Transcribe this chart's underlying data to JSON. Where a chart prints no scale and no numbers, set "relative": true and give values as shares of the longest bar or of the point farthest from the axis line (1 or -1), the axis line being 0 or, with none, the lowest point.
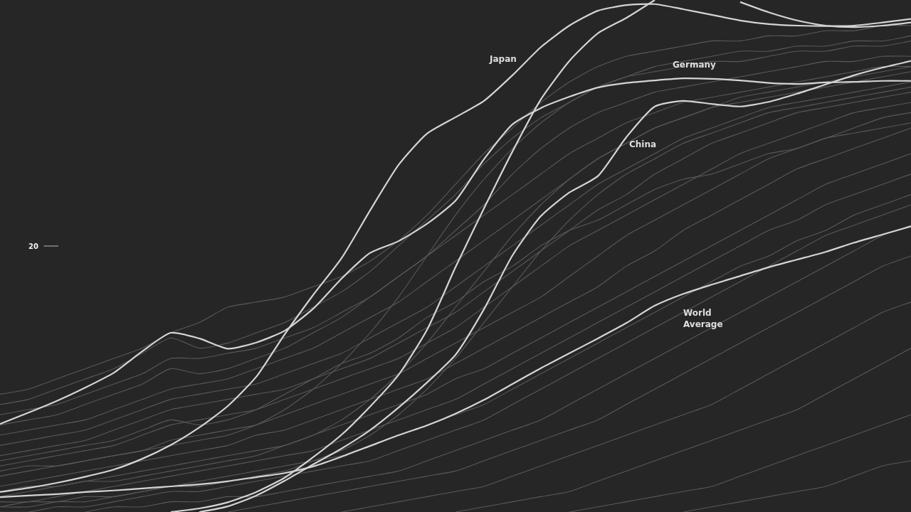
{
  "chart_data": {
    "type": "line",
    "relative": true,
    "categories": [
      null,
      null,
      null,
      null,
      null,
      null,
      null,
      null,
      null,
      null,
      null,
      null,
      null,
      null,
      null,
      null,
      null,
      null,
      null,
      null,
      null,
      null,
      null,
      null,
      null,
      null,
      null,
      null,
      null,
      null,
      null,
      null,
      null
    ],
    "annotations": [
      "20"
    ],
    "series": [
      {
        "color": "#595959",
        "values": [
          0.23,
          0.24,
          0.26,
          0.28,
          0.3,
          0.32,
          0.35,
          0.37,
          0.4,
          0.41,
          0.42,
          0.44,
          0.46,
          0.49,
          0.53,
          0.58,
          0.64,
          0.7,
          0.75,
          0.8,
          0.84,
          0.87,
          0.89,
          0.9,
          0.91,
          0.92,
          0.92,
          0.93,
          0.93,
          0.94,
          0.94,
          0.95,
          0.95
        ]
      },
      {
        "color": "#595959",
        "values": [
          0.21,
          0.22,
          0.24,
          0.26,
          0.28,
          0.31,
          0.34,
          0.32,
          0.33,
          0.35,
          0.37,
          0.4,
          0.43,
          0.47,
          0.52,
          0.57,
          0.62,
          0.68,
          0.73,
          0.77,
          0.8,
          0.83,
          0.85,
          0.86,
          0.87,
          0.88,
          0.88,
          0.89,
          0.9,
          0.9,
          0.91,
          0.91,
          0.92
        ]
      },
      {
        "color": "#595959",
        "values": [
          0.19,
          0.2,
          0.21,
          0.23,
          0.25,
          0.27,
          0.3,
          0.3,
          0.31,
          0.32,
          0.34,
          0.36,
          0.39,
          0.42,
          0.46,
          0.5,
          0.55,
          0.6,
          0.66,
          0.71,
          0.75,
          0.78,
          0.8,
          0.82,
          0.83,
          0.84,
          0.85,
          0.86,
          0.87,
          0.88,
          0.88,
          0.89,
          0.89
        ]
      },
      {
        "color": "#595959",
        "values": [
          0.17,
          0.18,
          0.19,
          0.21,
          0.23,
          0.25,
          0.28,
          0.27,
          0.28,
          0.3,
          0.32,
          0.35,
          0.38,
          0.42,
          0.46,
          0.5,
          0.54,
          0.58,
          0.62,
          0.66,
          0.7,
          0.73,
          0.76,
          0.78,
          0.8,
          0.81,
          0.82,
          0.83,
          0.84,
          0.85,
          0.86,
          0.87,
          0.87
        ]
      },
      {
        "color": "#595959",
        "values": [
          0.15,
          0.16,
          0.17,
          0.18,
          0.2,
          0.22,
          0.24,
          0.25,
          0.26,
          0.28,
          0.3,
          0.32,
          0.35,
          0.38,
          0.41,
          0.45,
          0.49,
          0.53,
          0.57,
          0.61,
          0.65,
          0.69,
          0.72,
          0.75,
          0.77,
          0.79,
          0.8,
          0.81,
          0.82,
          0.83,
          0.84,
          0.85,
          0.86
        ]
      },
      {
        "color": "#595959",
        "values": [
          0.13,
          0.14,
          0.15,
          0.16,
          0.18,
          0.2,
          0.22,
          0.23,
          0.24,
          0.25,
          0.27,
          0.29,
          0.31,
          0.34,
          0.37,
          0.4,
          0.44,
          0.48,
          0.52,
          0.56,
          0.6,
          0.64,
          0.67,
          0.7,
          0.73,
          0.75,
          0.77,
          0.79,
          0.8,
          0.81,
          0.82,
          0.83,
          0.84
        ]
      },
      {
        "color": "#595959",
        "values": [
          0.11,
          0.12,
          0.13,
          0.14,
          0.16,
          0.18,
          0.2,
          0.21,
          0.22,
          0.23,
          0.24,
          0.26,
          0.28,
          0.3,
          0.33,
          0.36,
          0.39,
          0.43,
          0.47,
          0.51,
          0.55,
          0.59,
          0.62,
          0.66,
          0.69,
          0.72,
          0.74,
          0.76,
          0.78,
          0.79,
          0.8,
          0.81,
          0.82
        ]
      },
      {
        "color": "#595959",
        "values": [
          0.09,
          0.1,
          0.11,
          0.12,
          0.13,
          0.15,
          0.17,
          0.18,
          0.19,
          0.2,
          0.22,
          0.24,
          0.26,
          0.28,
          0.3,
          0.33,
          0.36,
          0.4,
          0.44,
          0.48,
          0.52,
          0.55,
          0.58,
          0.61,
          0.64,
          0.67,
          0.7,
          0.72,
          0.74,
          0.76,
          0.78,
          0.79,
          0.8
        ]
      },
      {
        "color": "#595959",
        "values": [
          0.07,
          0.08,
          0.09,
          0.1,
          0.11,
          0.12,
          0.14,
          0.15,
          0.16,
          0.17,
          0.19,
          0.21,
          0.23,
          0.25,
          0.27,
          0.3,
          0.33,
          0.36,
          0.39,
          0.42,
          0.46,
          0.5,
          0.54,
          0.57,
          0.6,
          0.63,
          0.66,
          0.69,
          0.71,
          0.73,
          0.75,
          0.77,
          0.78
        ]
      },
      {
        "color": "#595959",
        "values": [
          0.05,
          0.06,
          0.07,
          0.08,
          0.09,
          0.1,
          0.11,
          0.12,
          0.13,
          0.15,
          0.16,
          0.18,
          0.2,
          0.22,
          0.24,
          0.26,
          0.29,
          0.32,
          0.35,
          0.38,
          0.41,
          0.44,
          0.48,
          0.51,
          0.55,
          0.58,
          0.61,
          0.64,
          0.67,
          0.69,
          0.71,
          0.73,
          0.75
        ]
      },
      {
        "color": "#595959",
        "values": [
          0.03,
          0.04,
          0.05,
          0.06,
          0.07,
          0.08,
          0.09,
          0.1,
          0.11,
          0.12,
          0.13,
          0.15,
          0.17,
          0.19,
          0.21,
          0.23,
          0.26,
          0.28,
          0.31,
          0.34,
          0.37,
          0.4,
          0.43,
          0.46,
          0.49,
          0.52,
          0.55,
          0.58,
          0.61,
          0.64,
          0.66,
          0.68,
          0.7
        ]
      },
      {
        "color": "#595959",
        "values": [
          0.02,
          0.02,
          0.03,
          0.04,
          0.05,
          0.06,
          0.07,
          0.08,
          0.09,
          0.1,
          0.11,
          0.12,
          0.14,
          0.16,
          0.18,
          0.2,
          0.22,
          0.25,
          0.28,
          0.31,
          0.34,
          0.37,
          0.4,
          0.43,
          0.46,
          0.49,
          0.52,
          0.55,
          0.57,
          0.6,
          0.62,
          0.64,
          0.66
        ]
      },
      {
        "color": "#595959",
        "values": [
          0.01,
          0.01,
          0.02,
          0.02,
          0.03,
          0.04,
          0.05,
          0.06,
          0.07,
          0.08,
          0.09,
          0.1,
          0.11,
          0.13,
          0.15,
          0.17,
          0.19,
          0.21,
          0.24,
          0.27,
          0.3,
          0.33,
          0.36,
          0.39,
          0.42,
          0.45,
          0.48,
          0.5,
          0.53,
          0.55,
          0.58,
          0.6,
          0.62
        ]
      },
      {
        "color": "#595959",
        "values": [
          0,
          0,
          0.01,
          0.01,
          0.02,
          0.03,
          0.04,
          0.04,
          0.05,
          0.06,
          0.07,
          0.08,
          0.09,
          0.1,
          0.12,
          0.14,
          0.16,
          0.18,
          0.21,
          0.24,
          0.27,
          0.3,
          0.33,
          0.36,
          0.39,
          0.42,
          0.45,
          0.48,
          0.51,
          0.54,
          0.56,
          0.58,
          0.6
        ]
      },
      {
        "color": "#595959",
        "values": [
          null,
          null,
          null,
          0,
          0.01,
          0.01,
          0.02,
          0.02,
          0.03,
          0.03,
          0.04,
          0.05,
          0.06,
          0.07,
          0.08,
          0.1,
          0.12,
          0.14,
          0.16,
          0.18,
          0.21,
          0.24,
          0.27,
          0.3,
          0.33,
          0.36,
          0.39,
          0.42,
          0.45,
          0.48,
          0.51,
          0.54,
          0.56
        ]
      },
      {
        "color": "#595959",
        "values": [
          null,
          null,
          null,
          null,
          null,
          null,
          null,
          null,
          0,
          0.01,
          0.02,
          0.03,
          0.04,
          0.05,
          0.06,
          0.07,
          0.08,
          0.1,
          0.12,
          0.14,
          0.16,
          0.18,
          0.21,
          0.24,
          0.27,
          0.3,
          0.33,
          0.36,
          0.39,
          0.42,
          0.45,
          0.48,
          0.5
        ]
      },
      {
        "color": "#595959",
        "values": [
          null,
          null,
          null,
          null,
          null,
          null,
          null,
          null,
          null,
          null,
          null,
          null,
          0,
          0.01,
          0.02,
          0.03,
          0.04,
          0.05,
          0.07,
          0.09,
          0.11,
          0.13,
          0.15,
          0.17,
          0.19,
          0.21,
          0.24,
          0.27,
          0.3,
          0.33,
          0.36,
          0.39,
          0.41
        ]
      },
      {
        "color": "#595959",
        "values": [
          null,
          null,
          null,
          null,
          null,
          null,
          null,
          null,
          null,
          null,
          null,
          null,
          null,
          null,
          null,
          null,
          0,
          0.01,
          0.02,
          0.03,
          0.04,
          0.06,
          0.08,
          0.1,
          0.12,
          0.14,
          0.16,
          0.18,
          0.2,
          0.23,
          0.26,
          0.29,
          0.32
        ]
      },
      {
        "color": "#595959",
        "values": [
          null,
          null,
          null,
          null,
          null,
          null,
          null,
          null,
          null,
          null,
          null,
          null,
          null,
          null,
          null,
          null,
          null,
          null,
          null,
          null,
          0,
          0.01,
          0.02,
          0.03,
          0.04,
          0.05,
          0.07,
          0.09,
          0.11,
          0.13,
          0.15,
          0.17,
          0.19
        ]
      },
      {
        "color": "#595959",
        "values": [
          null,
          null,
          null,
          null,
          null,
          null,
          null,
          null,
          null,
          null,
          null,
          null,
          null,
          null,
          null,
          null,
          null,
          null,
          null,
          null,
          null,
          null,
          null,
          null,
          0,
          0.01,
          0.02,
          0.03,
          0.04,
          0.05,
          0.07,
          0.09,
          0.1
        ]
      },
      {
        "color": "#595959",
        "values": [
          0.08,
          0.09,
          0.09,
          0.1,
          0.11,
          0.12,
          0.13,
          0.14,
          0.15,
          0.17,
          0.2,
          0.24,
          0.29,
          0.35,
          0.42,
          0.5,
          0.58,
          0.65,
          0.71,
          0.76,
          0.8,
          0.83,
          0.85,
          0.87,
          0.88,
          0.89,
          0.9,
          0.9,
          0.91,
          0.91,
          0.92,
          0.92,
          0.93
        ]
      },
      {
        "color": "#595959",
        "values": [
          0.04,
          0.05,
          0.05,
          0.06,
          0.06,
          0.07,
          0.08,
          0.09,
          0.1,
          0.11,
          0.13,
          0.15,
          0.18,
          0.22,
          0.27,
          0.33,
          0.4,
          0.47,
          0.54,
          0.6,
          0.65,
          0.69,
          0.72,
          0.75,
          0.77,
          0.79,
          0.81,
          0.82,
          0.83,
          0.84,
          0.85,
          0.86,
          0.87
        ]
      },
      {
        "color": "#595959",
        "values": [
          0.01,
          0.02,
          0.02,
          0.03,
          0.03,
          0.04,
          0.05,
          0.05,
          0.06,
          0.07,
          0.08,
          0.1,
          0.12,
          0.15,
          0.19,
          0.24,
          0.3,
          0.37,
          0.44,
          0.51,
          0.57,
          0.62,
          0.66,
          0.69,
          0.72,
          0.74,
          0.76,
          0.78,
          0.79,
          0.8,
          0.81,
          0.82,
          0.83
        ]
      },
      {
        "color": "#595959",
        "values": [
          0.1,
          0.11,
          0.12,
          0.13,
          0.14,
          0.16,
          0.18,
          0.17,
          0.18,
          0.2,
          0.23,
          0.26,
          0.29,
          0.31,
          0.34,
          0.38,
          0.41,
          0.45,
          0.48,
          0.52,
          0.55,
          0.57,
          0.6,
          0.63,
          0.65,
          0.66,
          0.68,
          0.7,
          0.71,
          0.73,
          0.74,
          0.75,
          0.76
        ]
      },
      {
        "color": "#d4d4d4",
        "values": [
          null,
          null,
          null,
          null,
          null,
          null,
          0,
          0.007,
          0.019,
          0.039,
          0.067,
          0.107,
          0.151,
          0.206,
          0.268,
          0.356,
          0.478,
          0.593,
          0.704,
          0.806,
          0.881,
          0.935,
          0.965,
          1,
          null,
          null,
          0.996,
          0.976,
          0.96,
          0.95,
          0.947,
          0.95,
          0.956
        ]
      },
      {
        "name": "Japan",
        "color": "#d4d4d4",
        "values": [
          0.039,
          0.047,
          0.057,
          0.069,
          0.083,
          0.104,
          0.131,
          0.165,
          0.207,
          0.264,
          0.347,
          0.424,
          0.496,
          0.589,
          0.678,
          0.739,
          0.771,
          0.803,
          0.853,
          0.908,
          0.95,
          0.979,
          0.99,
          0.992,
          0.982,
          0.971,
          0.96,
          0.953,
          0.95,
          0.949,
          0.95,
          0.956,
          0.963
        ]
      },
      {
        "name": "Germany",
        "color": "#d4d4d4",
        "values": [
          0.172,
          0.194,
          0.217,
          0.243,
          0.272,
          0.314,
          0.35,
          0.339,
          0.319,
          0.331,
          0.354,
          0.397,
          0.456,
          0.506,
          0.529,
          0.563,
          0.608,
          0.689,
          0.757,
          0.789,
          0.811,
          0.829,
          0.838,
          0.843,
          0.847,
          0.846,
          0.843,
          0.838,
          0.836,
          0.839,
          0.84,
          0.842,
          0.842
        ]
      },
      {
        "name": "China",
        "color": "#d4d4d4",
        "values": [
          null,
          null,
          null,
          null,
          null,
          null,
          null,
          0,
          0.011,
          0.032,
          0.061,
          0.093,
          0.124,
          0.16,
          0.204,
          0.253,
          0.307,
          0.396,
          0.501,
          0.578,
          0.624,
          0.656,
          0.732,
          0.792,
          0.803,
          0.797,
          0.792,
          0.801,
          0.817,
          0.835,
          0.853,
          0.868,
          0.881
        ]
      },
      {
        "name": "World Average",
        "color": "#d4d4d4",
        "values": [
          0.029,
          0.032,
          0.035,
          0.039,
          0.042,
          0.046,
          0.05,
          0.054,
          0.06,
          0.068,
          0.076,
          0.089,
          0.108,
          0.129,
          0.15,
          0.169,
          0.192,
          0.219,
          0.25,
          0.281,
          0.31,
          0.339,
          0.369,
          0.403,
          0.426,
          0.444,
          0.461,
          0.478,
          0.493,
          0.508,
          0.526,
          0.542,
          0.558
        ]
      }
    ]
  }
}
